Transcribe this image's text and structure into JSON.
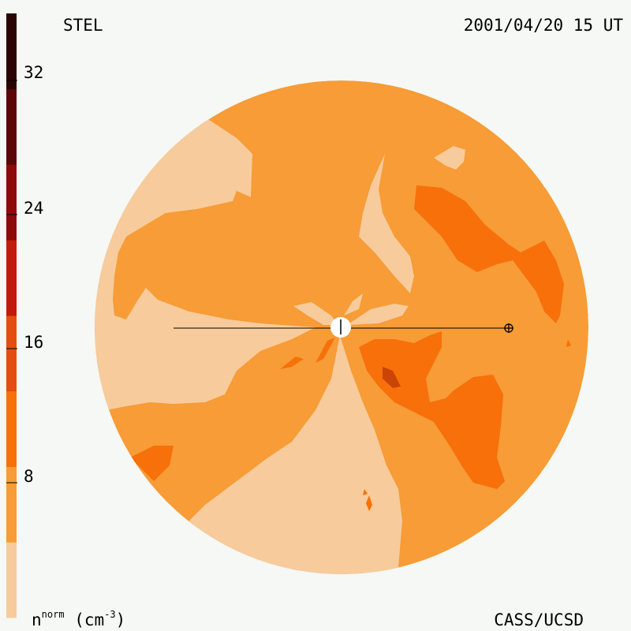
{
  "header": {
    "left_title": "STEL",
    "right_title": "2001/04/20 15 UT"
  },
  "footer": {
    "credit": "CASS/UCSD",
    "unit_base": "n",
    "unit_sup": "norm",
    "unit_paren": "(cm",
    "unit_exp": "-3",
    "unit_close": ")"
  },
  "colorbar": {
    "ticks": [
      "32",
      "24",
      "16",
      "8"
    ],
    "colors": [
      "#f7cb9c",
      "#f79c36",
      "#f7700a",
      "#e44e10",
      "#c21b0e",
      "#8e0a0a",
      "#5c0707",
      "#2b0303"
    ]
  },
  "map": {
    "colors": {
      "lightest": "#f7cb9c",
      "light": "#f79c36",
      "medium": "#f7700a",
      "dark": "#c94406"
    }
  }
}
